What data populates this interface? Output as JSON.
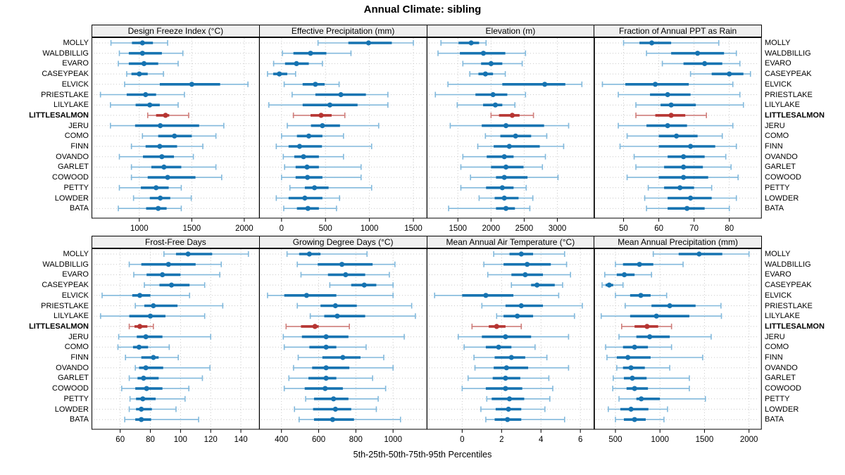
{
  "title": "Annual Climate: sibling",
  "caption": "5th-25th-50th-75th-95th Percentiles",
  "percentile_labels": [
    "5th",
    "25th",
    "50th",
    "75th",
    "95th"
  ],
  "highlight_site": "LITTLESALMON",
  "colors": {
    "blue": "#1673b1",
    "blue_light": "#82b9dc",
    "red": "#b63532",
    "red_light": "#cf7d7a",
    "grid": "#c9c9c9",
    "strip_bg": "#f0f0f0",
    "border": "#000000"
  },
  "sites": [
    "MOLLY",
    "WALDBILLIG",
    "EVARO",
    "CASEYPEAK",
    "ELVICK",
    "PRIESTLAKE",
    "LILYLAKE",
    "LITTLESALMON",
    "JERU",
    "COMO",
    "FINN",
    "OVANDO",
    "GARLET",
    "COWOOD",
    "PETTY",
    "LOWDER",
    "BATA"
  ],
  "chart_data": [
    {
      "type": "dotplot_intervals",
      "group": 0,
      "col": 0,
      "title": "Design Freeze Index (°C)",
      "xlim": [
        545,
        2140
      ],
      "ticks": [
        1000,
        1500,
        2000
      ],
      "series": [
        [
          730,
          930,
          1030,
          1130,
          1270
        ],
        [
          810,
          900,
          1030,
          1215,
          1415
        ],
        [
          800,
          900,
          1045,
          1180,
          1370
        ],
        [
          880,
          925,
          1000,
          1080,
          1230
        ],
        [
          860,
          1195,
          1500,
          1770,
          2035
        ],
        [
          630,
          880,
          1060,
          1160,
          1430
        ],
        [
          725,
          965,
          1100,
          1195,
          1370
        ],
        [
          1080,
          1160,
          1250,
          1285,
          1470
        ],
        [
          725,
          960,
          1200,
          1570,
          1805
        ],
        [
          1030,
          1180,
          1335,
          1500,
          1730
        ],
        [
          925,
          1060,
          1195,
          1360,
          1605
        ],
        [
          810,
          1035,
          1215,
          1330,
          1515
        ],
        [
          925,
          1115,
          1235,
          1400,
          1730
        ],
        [
          925,
          1080,
          1270,
          1535,
          1785
        ],
        [
          810,
          1015,
          1160,
          1280,
          1400
        ],
        [
          945,
          1100,
          1200,
          1295,
          1495
        ],
        [
          800,
          1065,
          1180,
          1260,
          1400
        ]
      ]
    },
    {
      "type": "dotplot_intervals",
      "group": 0,
      "col": 1,
      "title": "Effective Precipitation (mm)",
      "xlim": [
        -255,
        1650
      ],
      "ticks": [
        0,
        500,
        1000,
        1500
      ],
      "series": [
        [
          415,
          760,
          990,
          1255,
          1500
        ],
        [
          10,
          135,
          330,
          510,
          790
        ],
        [
          -90,
          40,
          170,
          310,
          465
        ],
        [
          -160,
          -95,
          -25,
          65,
          160
        ],
        [
          30,
          240,
          385,
          490,
          655
        ],
        [
          120,
          385,
          675,
          960,
          1210
        ],
        [
          -145,
          240,
          550,
          865,
          1210
        ],
        [
          135,
          330,
          450,
          570,
          720
        ],
        [
          65,
          335,
          465,
          665,
          1105
        ],
        [
          0,
          175,
          310,
          465,
          705
        ],
        [
          -60,
          80,
          205,
          460,
          1025
        ],
        [
          20,
          145,
          250,
          425,
          705
        ],
        [
          35,
          160,
          290,
          425,
          905
        ],
        [
          0,
          160,
          295,
          465,
          905
        ],
        [
          95,
          265,
          375,
          535,
          1025
        ],
        [
          -60,
          80,
          265,
          465,
          660
        ],
        [
          25,
          175,
          300,
          425,
          625
        ]
      ]
    },
    {
      "type": "dotplot_intervals",
      "group": 0,
      "col": 2,
      "title": "Elevation (m)",
      "xlim": [
        1030,
        3555
      ],
      "ticks": [
        1500,
        2000,
        2500,
        3000
      ],
      "series": [
        [
          1245,
          1510,
          1700,
          1820,
          1925
        ],
        [
          1200,
          1530,
          1885,
          2215,
          2520
        ],
        [
          1575,
          1850,
          2000,
          2170,
          2470
        ],
        [
          1680,
          1810,
          1915,
          2030,
          2215
        ],
        [
          1350,
          2170,
          2810,
          3120,
          3370
        ],
        [
          1160,
          1765,
          2030,
          2245,
          2520
        ],
        [
          1490,
          1880,
          2065,
          2170,
          2360
        ],
        [
          2000,
          2120,
          2320,
          2430,
          2640
        ],
        [
          1385,
          1860,
          2225,
          2800,
          3170
        ],
        [
          1915,
          2140,
          2370,
          2605,
          2840
        ],
        [
          1800,
          2040,
          2275,
          2735,
          3095
        ],
        [
          1575,
          1935,
          2200,
          2340,
          2820
        ],
        [
          1545,
          2000,
          2225,
          2490,
          2775
        ],
        [
          1690,
          2075,
          2200,
          2550,
          3010
        ],
        [
          1545,
          1925,
          2170,
          2340,
          2530
        ],
        [
          1820,
          2055,
          2200,
          2415,
          2630
        ],
        [
          1360,
          2075,
          2225,
          2360,
          2585
        ]
      ]
    },
    {
      "type": "dotplot_intervals",
      "group": 0,
      "col": 3,
      "title": "Fraction of Annual PPT as Rain",
      "xlim": [
        41.5,
        89
      ],
      "ticks": [
        50,
        60,
        70,
        80
      ],
      "series": [
        [
          50,
          54.5,
          58,
          63.5,
          77
        ],
        [
          56.5,
          63.5,
          71,
          78.5,
          82
        ],
        [
          61,
          67,
          73,
          78,
          83
        ],
        [
          69,
          75,
          80,
          84,
          86
        ],
        [
          44,
          50.5,
          59,
          68.5,
          81
        ],
        [
          48.5,
          57.5,
          62.5,
          69,
          83
        ],
        [
          53.5,
          60.5,
          63.5,
          70.5,
          84
        ],
        [
          53.5,
          59,
          63.5,
          67.5,
          73.5
        ],
        [
          48.5,
          56.5,
          62.5,
          68,
          81
        ],
        [
          51,
          60,
          65,
          71,
          78
        ],
        [
          49,
          60,
          69,
          76,
          82
        ],
        [
          53,
          62.5,
          67,
          73,
          79
        ],
        [
          53.5,
          61.5,
          67,
          72.5,
          80.5
        ],
        [
          51,
          60,
          67,
          74,
          82.5
        ],
        [
          57,
          61.5,
          66,
          70,
          75
        ],
        [
          56,
          62.5,
          69,
          75,
          82
        ],
        [
          56.5,
          62.5,
          68,
          73,
          80
        ]
      ]
    },
    {
      "type": "dotplot_intervals",
      "group": 1,
      "col": 0,
      "title": "Frost-Free Days",
      "xlim": [
        41,
        152
      ],
      "ticks": [
        60,
        80,
        100,
        120,
        140
      ],
      "series": [
        [
          89,
          97,
          105,
          121,
          145
        ],
        [
          66,
          74,
          92,
          110,
          127
        ],
        [
          69,
          77.5,
          88,
          100,
          126
        ],
        [
          76,
          86,
          94,
          106,
          116
        ],
        [
          48,
          68,
          73,
          80,
          106
        ],
        [
          70,
          76,
          82,
          98,
          128
        ],
        [
          47,
          66,
          80,
          90,
          116
        ],
        [
          66,
          69.5,
          73,
          78,
          82
        ],
        [
          59,
          71,
          77,
          88,
          120
        ],
        [
          58.5,
          68.5,
          72.5,
          78.5,
          92.5
        ],
        [
          63.5,
          74,
          82,
          85.5,
          98.5
        ],
        [
          70,
          72.5,
          77,
          88.5,
          119.5
        ],
        [
          66,
          71.5,
          75.5,
          85.5,
          114.5
        ],
        [
          61,
          70,
          77.5,
          88,
          105.5
        ],
        [
          66.5,
          70.5,
          75,
          83.5,
          103
        ],
        [
          66,
          70.5,
          74,
          81,
          97
        ],
        [
          63,
          70,
          74,
          80.5,
          112
        ]
      ]
    },
    {
      "type": "dotplot_intervals",
      "group": 1,
      "col": 1,
      "title": "Growing Degree Days (°C)",
      "xlim": [
        280,
        1180
      ],
      "ticks": [
        400,
        600,
        800,
        1000
      ],
      "series": [
        [
          430,
          495,
          550,
          610,
          860
        ],
        [
          485,
          595,
          725,
          890,
          1010
        ],
        [
          505,
          650,
          745,
          850,
          980
        ],
        [
          660,
          775,
          845,
          910,
          1000
        ],
        [
          325,
          415,
          535,
          695,
          1000
        ],
        [
          485,
          610,
          690,
          805,
          1100
        ],
        [
          555,
          630,
          700,
          850,
          1120
        ],
        [
          425,
          505,
          580,
          600,
          765
        ],
        [
          410,
          510,
          640,
          760,
          1060
        ],
        [
          415,
          550,
          640,
          695,
          855
        ],
        [
          490,
          620,
          730,
          825,
          950
        ],
        [
          465,
          565,
          640,
          765,
          1000
        ],
        [
          440,
          545,
          640,
          695,
          890
        ],
        [
          415,
          525,
          635,
          730,
          960
        ],
        [
          530,
          575,
          680,
          760,
          920
        ],
        [
          470,
          570,
          690,
          775,
          910
        ],
        [
          495,
          575,
          675,
          790,
          1040
        ]
      ]
    },
    {
      "type": "dotplot_intervals",
      "group": 1,
      "col": 2,
      "title": "Mean Annual Air Temperature (°C)",
      "xlim": [
        -1.8,
        6.7
      ],
      "ticks": [
        0,
        2,
        4,
        6
      ],
      "series": [
        [
          1.6,
          2.4,
          3.0,
          3.6,
          5.2
        ],
        [
          1.1,
          2.1,
          3.3,
          4.5,
          5.3
        ],
        [
          1.3,
          2.5,
          3.2,
          4.1,
          5.5
        ],
        [
          2.5,
          3.5,
          3.8,
          4.7,
          5.1
        ],
        [
          -1.4,
          0.0,
          1.2,
          2.6,
          4.9
        ],
        [
          1.0,
          2.2,
          3.0,
          4.1,
          6.1
        ],
        [
          1.75,
          2.1,
          2.8,
          3.6,
          5.7
        ],
        [
          0.5,
          1.35,
          1.75,
          2.2,
          3.0
        ],
        [
          -0.2,
          1.0,
          2.2,
          3.5,
          5.4
        ],
        [
          0.1,
          1.2,
          1.85,
          2.5,
          3.7
        ],
        [
          0.6,
          1.65,
          2.5,
          3.2,
          4.3
        ],
        [
          0.65,
          1.6,
          2.25,
          3.35,
          5.4
        ],
        [
          0.3,
          1.55,
          2.2,
          2.95,
          4.4
        ],
        [
          0.0,
          1.2,
          2.2,
          3.05,
          4.6
        ],
        [
          1.25,
          1.5,
          2.4,
          3.15,
          4.45
        ],
        [
          0.95,
          1.7,
          2.35,
          3.0,
          4.2
        ],
        [
          1.2,
          1.65,
          2.3,
          3.0,
          5.2
        ]
      ]
    },
    {
      "type": "dotplot_intervals",
      "group": 1,
      "col": 3,
      "title": "Mean Annual Precipitation (mm)",
      "xlim": [
        255,
        2135
      ],
      "ticks": [
        500,
        1000,
        1500,
        2000
      ],
      "series": [
        [
          925,
          1210,
          1440,
          1700,
          2000
        ],
        [
          500,
          585,
          770,
          925,
          1260
        ],
        [
          380,
          515,
          600,
          715,
          905
        ],
        [
          350,
          390,
          430,
          475,
          585
        ],
        [
          500,
          665,
          785,
          895,
          1075
        ],
        [
          610,
          905,
          1110,
          1400,
          1685
        ],
        [
          340,
          665,
          960,
          1330,
          1690
        ],
        [
          570,
          715,
          855,
          980,
          1130
        ],
        [
          540,
          735,
          885,
          1110,
          1575
        ],
        [
          390,
          585,
          715,
          865,
          1130
        ],
        [
          405,
          515,
          640,
          895,
          1480
        ],
        [
          515,
          585,
          675,
          830,
          1110
        ],
        [
          475,
          595,
          690,
          850,
          1330
        ],
        [
          470,
          625,
          715,
          865,
          1330
        ],
        [
          540,
          735,
          790,
          1000,
          1510
        ],
        [
          420,
          555,
          675,
          870,
          1085
        ],
        [
          500,
          595,
          715,
          840,
          1045
        ]
      ]
    }
  ]
}
